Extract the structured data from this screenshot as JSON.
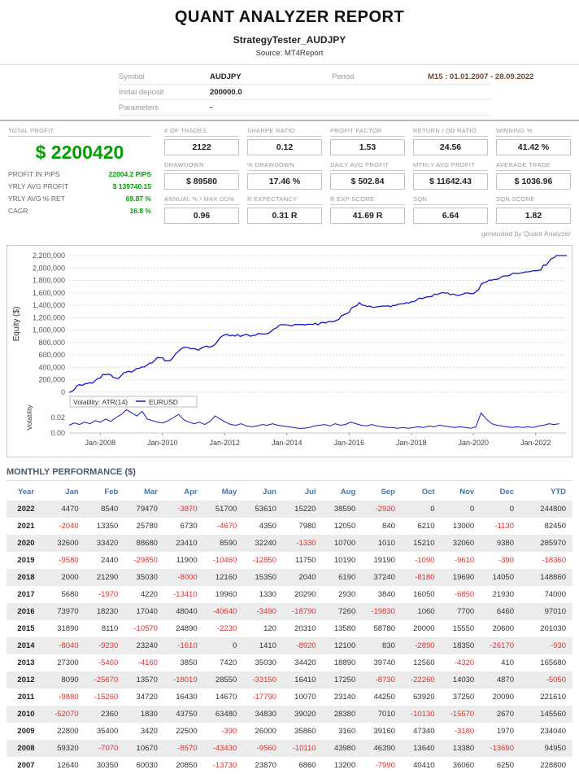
{
  "header": {
    "title": "QUANT ANALYZER REPORT",
    "subtitle": "StrategyTester_AUDJPY",
    "source": "Source: MT4Report"
  },
  "info": {
    "symbol": {
      "label": "Symbol",
      "value": "AUDJPY"
    },
    "period": {
      "label": "Period",
      "value": "M15 : 01.01.2007 - 28.09.2022"
    },
    "initial_deposit": {
      "label": "Initial deposit",
      "value": "200000.0"
    },
    "parameters": {
      "label": "Parameters",
      "value": "-"
    }
  },
  "summary": {
    "total_profit": {
      "label": "TOTAL PROFIT",
      "value": "$ 2200420"
    },
    "left_stats": [
      {
        "label": "PROFIT IN PIPS",
        "value": "22004.2 PIPS"
      },
      {
        "label": "YRLY AVG PROFIT",
        "value": "$ 139740.15"
      },
      {
        "label": "YRLY AVG % RET",
        "value": "69.87 %"
      },
      {
        "label": "CAGR",
        "value": "16.8 %"
      }
    ],
    "grid": [
      [
        {
          "label": "# OF TRADES",
          "value": "2122"
        },
        {
          "label": "SHARPE RATIO",
          "value": "0.12"
        },
        {
          "label": "PROFIT FACTOR",
          "value": "1.53"
        },
        {
          "label": "RETURN / DD RATIO",
          "value": "24.56"
        },
        {
          "label": "WINNING %",
          "value": "41.42 %"
        }
      ],
      [
        {
          "label": "DRAWDOWN",
          "value": "$ 89580"
        },
        {
          "label": "% DRAWDOWN",
          "value": "17.46 %"
        },
        {
          "label": "DAILY AVG PROFIT",
          "value": "$ 502.84"
        },
        {
          "label": "MTHLY AVG PROFIT",
          "value": "$ 11642.43"
        },
        {
          "label": "AVERAGE TRADE",
          "value": "$ 1036.96"
        }
      ],
      [
        {
          "label": "ANNUAL % / MAX DD%",
          "value": "0.96"
        },
        {
          "label": "R EXPECTANCY",
          "value": "0.31 R"
        },
        {
          "label": "R EXP SCORE",
          "value": "41.69 R"
        },
        {
          "label": "SQN",
          "value": "6.64"
        },
        {
          "label": "SQN SCORE",
          "value": "1.82"
        }
      ]
    ],
    "generated_by": "generated by Quant Analyzer"
  },
  "chart_data": [
    {
      "type": "line",
      "name": "equity-curve",
      "ylabel": "Equity ($)",
      "ylim": [
        0,
        2200000
      ],
      "ytick_step": 200000,
      "xtick_labels": [
        "Jan-2008",
        "Jan-2010",
        "Jan-2012",
        "Jan-2014",
        "Jan-2016",
        "Jan-2018",
        "Jan-2020",
        "Jan-2022"
      ],
      "values_from": "cumulative sum of monthly_performance values starting at 0 in Jan-2007",
      "color": "#1414c8"
    },
    {
      "type": "line",
      "name": "volatility",
      "ylabel": "Volatility",
      "legend": "Volatility: ATR(14)",
      "symbol": "EURUSD",
      "ylim": [
        0,
        0.04
      ],
      "yticks": [
        0.02,
        0
      ],
      "color": "#1414c8",
      "values": [
        0.01,
        0.013,
        0.011,
        0.014,
        0.012,
        0.016,
        0.014,
        0.018,
        0.015,
        0.02,
        0.024,
        0.03,
        0.026,
        0.022,
        0.028,
        0.018,
        0.016,
        0.014,
        0.013,
        0.016,
        0.02,
        0.024,
        0.017,
        0.014,
        0.012,
        0.014,
        0.011,
        0.015,
        0.022,
        0.018,
        0.014,
        0.011,
        0.01,
        0.012,
        0.009,
        0.008,
        0.009,
        0.011,
        0.01,
        0.012,
        0.01,
        0.009,
        0.008,
        0.007,
        0.006,
        0.006,
        0.007,
        0.009,
        0.01,
        0.011,
        0.009,
        0.012,
        0.01,
        0.011,
        0.014,
        0.012,
        0.01,
        0.009,
        0.011,
        0.009,
        0.008,
        0.007,
        0.007,
        0.006,
        0.007,
        0.006,
        0.007,
        0.008,
        0.007,
        0.009,
        0.008,
        0.01,
        0.009,
        0.008,
        0.007,
        0.008,
        0.007,
        0.006,
        0.008,
        0.026,
        0.018,
        0.012,
        0.01,
        0.009,
        0.008,
        0.007,
        0.008,
        0.007,
        0.008,
        0.007,
        0.009,
        0.01,
        0.012,
        0.011,
        0.012
      ]
    }
  ],
  "monthly_performance": {
    "title": "MONTHLY PERFORMANCE ($)",
    "columns": [
      "Year",
      "Jan",
      "Feb",
      "Mar",
      "Apr",
      "May",
      "Jun",
      "Jul",
      "Aug",
      "Sep",
      "Oct",
      "Nov",
      "Dec",
      "YTD"
    ],
    "rows": [
      {
        "year": "2022",
        "values": [
          4470,
          8540,
          79470,
          -3870,
          51700,
          53610,
          15220,
          38590,
          -2930,
          0,
          0,
          0
        ],
        "ytd": 244800
      },
      {
        "year": "2021",
        "values": [
          -2040,
          13350,
          25780,
          6730,
          -4670,
          4350,
          7980,
          12050,
          840,
          6210,
          13000,
          -1130
        ],
        "ytd": 82450
      },
      {
        "year": "2020",
        "values": [
          32600,
          33420,
          88680,
          23410,
          8590,
          32240,
          -1330,
          10700,
          1010,
          15210,
          32060,
          9380
        ],
        "ytd": 285970
      },
      {
        "year": "2019",
        "values": [
          -9580,
          2440,
          -29850,
          11900,
          -10460,
          -12850,
          11750,
          10190,
          19190,
          -1090,
          -9610,
          -390
        ],
        "ytd": -18360
      },
      {
        "year": "2018",
        "values": [
          2000,
          21290,
          35030,
          -8000,
          12160,
          15350,
          2040,
          6190,
          37240,
          -8180,
          19690,
          14050
        ],
        "ytd": 148860
      },
      {
        "year": "2017",
        "values": [
          5680,
          -1970,
          4220,
          -13410,
          19960,
          1330,
          20290,
          2930,
          3840,
          16050,
          -6850,
          21930
        ],
        "ytd": 74000
      },
      {
        "year": "2016",
        "values": [
          73970,
          18230,
          17040,
          48040,
          -40640,
          -3490,
          -18790,
          7260,
          -19830,
          1060,
          7700,
          6460
        ],
        "ytd": 97010
      },
      {
        "year": "2015",
        "values": [
          31890,
          8110,
          -10570,
          24890,
          -2230,
          120,
          20310,
          13580,
          58780,
          20000,
          15550,
          20600
        ],
        "ytd": 201030
      },
      {
        "year": "2014",
        "values": [
          -8040,
          -9230,
          23240,
          -1610,
          0,
          1410,
          -8920,
          12100,
          830,
          -2890,
          18350,
          -26170
        ],
        "ytd": -930
      },
      {
        "year": "2013",
        "values": [
          27300,
          -5460,
          -4160,
          3850,
          7420,
          35030,
          34420,
          18890,
          39740,
          12560,
          -4320,
          410
        ],
        "ytd": 165680
      },
      {
        "year": "2012",
        "values": [
          8090,
          -25670,
          13570,
          -18010,
          28550,
          -33150,
          16410,
          17250,
          -8730,
          -22260,
          14030,
          4870
        ],
        "ytd": -5050
      },
      {
        "year": "2011",
        "values": [
          -9880,
          -15260,
          34720,
          16430,
          14670,
          -17790,
          10070,
          23140,
          44250,
          63920,
          37250,
          20090
        ],
        "ytd": 221610
      },
      {
        "year": "2010",
        "values": [
          -52070,
          2360,
          1830,
          43750,
          63480,
          34830,
          39020,
          28380,
          7010,
          -10130,
          -15570,
          2670
        ],
        "ytd": 145560
      },
      {
        "year": "2009",
        "values": [
          22800,
          35400,
          3420,
          22500,
          -390,
          26000,
          35860,
          3160,
          39160,
          47340,
          -3180,
          1970
        ],
        "ytd": 234040
      },
      {
        "year": "2008",
        "values": [
          59320,
          -7070,
          10670,
          -8570,
          -43430,
          -9560,
          -10110,
          43980,
          46390,
          13640,
          13380,
          -13690
        ],
        "ytd": 94950
      },
      {
        "year": "2007",
        "values": [
          12640,
          30350,
          60030,
          20850,
          -13730,
          23870,
          6860,
          13200,
          -7990,
          40410,
          36060,
          6250
        ],
        "ytd": 228800
      }
    ]
  }
}
